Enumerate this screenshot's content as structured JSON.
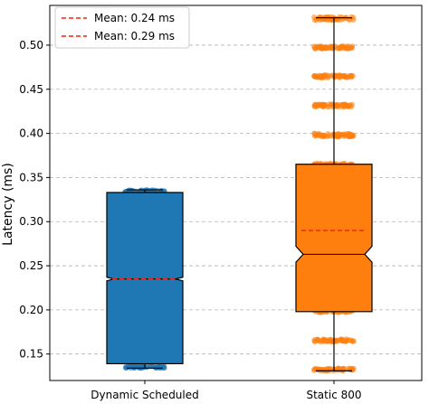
{
  "chart_data": {
    "type": "box",
    "ylabel": "Latency (ms)",
    "xlabel": "",
    "ylim": [
      0.12,
      0.545
    ],
    "yticks": [
      "0.15",
      "0.20",
      "0.25",
      "0.30",
      "0.35",
      "0.40",
      "0.45",
      "0.50"
    ],
    "grid": "horizontal-dashed",
    "legend_position": "top-left",
    "mean_line_color": "#e8271c",
    "categories": [
      "Dynamic Scheduled",
      "Static 800"
    ],
    "series": [
      {
        "name": "Dynamic Scheduled",
        "color": "#1f77b4",
        "edge_color": "#000000",
        "whisker_low": 0.134,
        "q1": 0.139,
        "median": 0.235,
        "mean": 0.235,
        "q3": 0.333,
        "whisker_high": 0.336,
        "notch_low": 0.233,
        "notch_high": 0.237,
        "point_bands": [
          [
            0.134,
            0.137
          ],
          [
            0.333,
            0.336
          ]
        ]
      },
      {
        "name": "Static 800",
        "color": "#ff7f0e",
        "edge_color": "#000000",
        "whisker_low": 0.131,
        "q1": 0.198,
        "median": 0.263,
        "mean": 0.29,
        "q3": 0.365,
        "whisker_high": 0.531,
        "notch_low": 0.254,
        "notch_high": 0.272,
        "point_bands": [
          [
            0.131,
            0.134
          ],
          [
            0.164,
            0.167
          ],
          [
            0.197,
            0.2
          ],
          [
            0.363,
            0.366
          ],
          [
            0.396,
            0.4
          ],
          [
            0.43,
            0.433
          ],
          [
            0.463,
            0.466
          ],
          [
            0.496,
            0.499
          ],
          [
            0.528,
            0.532
          ]
        ]
      }
    ],
    "legend": [
      {
        "label": "Mean: 0.24 ms"
      },
      {
        "label": "Mean: 0.29 ms"
      }
    ]
  }
}
